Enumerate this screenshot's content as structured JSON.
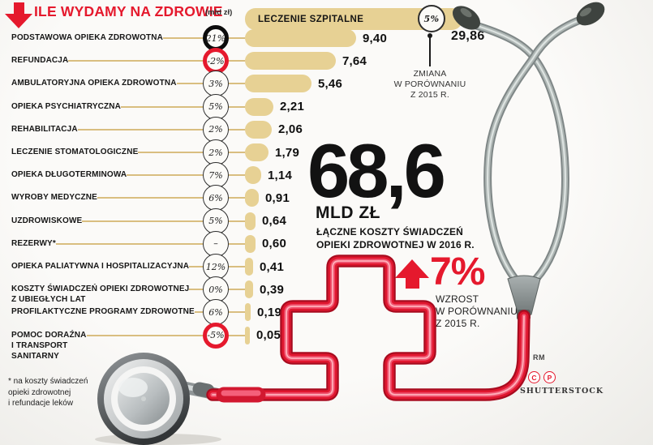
{
  "colors": {
    "red": "#e5192d",
    "tan": "#e7d194",
    "gold": "#d9be80",
    "black": "#141414"
  },
  "header": {
    "title": "ILE WYDAMY NA ZDROWIE",
    "unit": "(mld zł)"
  },
  "top_row": {
    "label": "LECZENIE SZPITALNE",
    "pct": "5%",
    "value": "29,86"
  },
  "annotation_top": {
    "lines": "ZMIANA\nW PORÓWNANIU\nZ 2015 R."
  },
  "rows": [
    {
      "label": "PODSTAWOWA OPIEKA ZDROWOTNA",
      "pct": "21%",
      "value": "9,40",
      "num": 9.4,
      "ring": "thick-black"
    },
    {
      "label": "REFUNDACJA",
      "pct": "-2%",
      "value": "7,64",
      "num": 7.64,
      "ring": "thick-red"
    },
    {
      "label": "AMBULATORYJNA OPIEKA ZDROWOTNA",
      "pct": "3%",
      "value": "5,46",
      "num": 5.46,
      "ring": "thin"
    },
    {
      "label": "OPIEKA PSYCHIATRYCZNA",
      "pct": "5%",
      "value": "2,21",
      "num": 2.21,
      "ring": "thin"
    },
    {
      "label": "REHABILITACJA",
      "pct": "2%",
      "value": "2,06",
      "num": 2.06,
      "ring": "thin"
    },
    {
      "label": "LECZENIE STOMATOLOGICZNE",
      "pct": "2%",
      "value": "1,79",
      "num": 1.79,
      "ring": "thin"
    },
    {
      "label": "OPIEKA DŁUGOTERMINOWA",
      "pct": "7%",
      "value": "1,14",
      "num": 1.14,
      "ring": "thin"
    },
    {
      "label": "WYROBY MEDYCZNE",
      "pct": "6%",
      "value": "0,91",
      "num": 0.91,
      "ring": "thin"
    },
    {
      "label": "UZDROWISKOWE",
      "pct": "5%",
      "value": "0,64",
      "num": 0.64,
      "ring": "thin"
    },
    {
      "label": "REZERWY*",
      "pct": "–",
      "value": "0,60",
      "num": 0.6,
      "ring": "thin"
    },
    {
      "label": "OPIEKA PALIATYWNA I HOSPITALIZACYJNA",
      "pct": "12%",
      "value": "0,41",
      "num": 0.41,
      "ring": "thin"
    },
    {
      "label": "KOSZTY ŚWIADCZEŃ OPIEKI ZDROWOTNEJ\nZ UBIEGŁYCH LAT",
      "pct": "0%",
      "value": "0,39",
      "num": 0.39,
      "ring": "thin"
    },
    {
      "label": "PROFILAKTYCZNE PROGRAMY ZDROWOTNE",
      "pct": "6%",
      "value": "0,19",
      "num": 0.19,
      "ring": "thin"
    },
    {
      "label": "POMOC DORAŹNA\nI TRANSPORT\nSANITARNY",
      "pct": "-5%",
      "value": "0,05",
      "num": 0.05,
      "ring": "thick-red"
    }
  ],
  "total": {
    "value": "68,6",
    "unit": "MLD ZŁ",
    "caption": "ŁĄCZNE KOSZTY ŚWIADCZEŃ\nOPIEKI ZDROWOTNEJ W 2016 R."
  },
  "growth": {
    "value": "7%",
    "caption": "WZROST\nW PORÓWNANIU\nZ 2015 R."
  },
  "footnote": "* na koszty świadczeń\nopieki zdrowotnej\ni refundacje leków",
  "credits": {
    "rm": "RM",
    "copyright": "C",
    "producer": "P",
    "agency": "SHUTTERSTOCK"
  },
  "chart_data": {
    "type": "bar",
    "title": "ILE WYDAMY NA ZDROWIE",
    "unit": "mld zł",
    "categories": [
      "LECZENIE SZPITALNE",
      "PODSTAWOWA OPIEKA ZDROWOTNA",
      "REFUNDACJA",
      "AMBULATORYJNA OPIEKA ZDROWOTNA",
      "OPIEKA PSYCHIATRYCZNA",
      "REHABILITACJA",
      "LECZENIE STOMATOLOGICZNE",
      "OPIEKA DŁUGOTERMINOWA",
      "WYROBY MEDYCZNE",
      "UZDROWISKOWE",
      "REZERWY*",
      "OPIEKA PALIATYWNA I HOSPITALIZACYJNA",
      "KOSZTY ŚWIADCZEŃ OPIEKI ZDROWOTNEJ Z UBIEGŁYCH LAT",
      "PROFILAKTYCZNE PROGRAMY ZDROWOTNE",
      "POMOC DORAŹNA I TRANSPORT SANITARNY"
    ],
    "values": [
      29.86,
      9.4,
      7.64,
      5.46,
      2.21,
      2.06,
      1.79,
      1.14,
      0.91,
      0.64,
      0.6,
      0.41,
      0.39,
      0.19,
      0.05
    ],
    "change_vs_2015_pct": [
      "5%",
      "21%",
      "-2%",
      "3%",
      "5%",
      "2%",
      "2%",
      "7%",
      "6%",
      "5%",
      "–",
      "12%",
      "0%",
      "6%",
      "-5%"
    ],
    "total": {
      "value": 68.6,
      "label": "68,6 MLD ZŁ",
      "caption": "ŁĄCZNE KOSZTY ŚWIADCZEŃ OPIEKI ZDROWOTNEJ W 2016 R."
    },
    "growth": {
      "value": "7%",
      "caption": "WZROST W PORÓWNANIU Z 2015 R."
    },
    "footnote": "* na koszty świadczeń opieki zdrowotnej i refundacje leków",
    "legend_position": "none",
    "grid": false
  }
}
